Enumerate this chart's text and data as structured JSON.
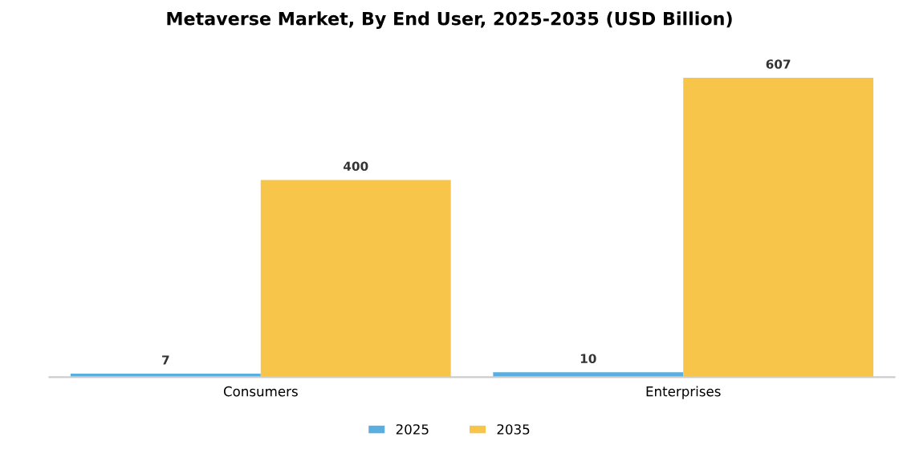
{
  "chart_data": {
    "type": "bar",
    "title": "Metaverse Market, By End User, 2025-2035 (USD Billion)",
    "categories": [
      "Consumers",
      "Enterprises"
    ],
    "series": [
      {
        "name": "2025",
        "color": "#5aafe0",
        "values": [
          7,
          10
        ]
      },
      {
        "name": "2035",
        "color": "#f7c54a",
        "values": [
          400,
          607
        ]
      }
    ],
    "data_labels": true,
    "legend": "bottom",
    "grid": false
  }
}
